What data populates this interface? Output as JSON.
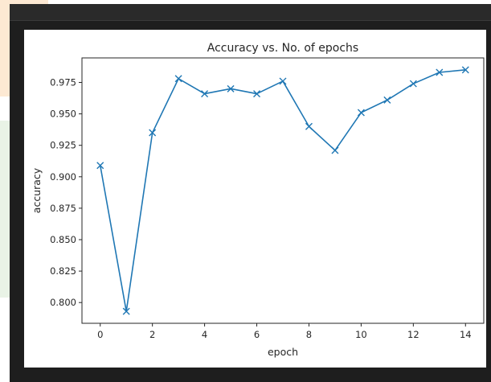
{
  "chart_data": {
    "type": "line",
    "title": "Accuracy vs. No. of epochs",
    "xlabel": "epoch",
    "ylabel": "accuracy",
    "x": [
      0,
      1,
      2,
      3,
      4,
      5,
      6,
      7,
      8,
      9,
      10,
      11,
      12,
      13,
      14
    ],
    "series": [
      {
        "values": [
          0.909,
          0.793,
          0.935,
          0.978,
          0.966,
          0.97,
          0.966,
          0.976,
          0.94,
          0.921,
          0.951,
          0.961,
          0.974,
          0.983,
          0.985
        ],
        "color": "#1f77b4",
        "marker": "x"
      }
    ],
    "xlim": [
      -0.7,
      14.7
    ],
    "ylim": [
      0.7835,
      0.9945
    ],
    "xticks": [
      0,
      2,
      4,
      6,
      8,
      10,
      12,
      14
    ],
    "xtick_labels": [
      "0",
      "2",
      "4",
      "6",
      "8",
      "10",
      "12",
      "14"
    ],
    "yticks": [
      0.8,
      0.825,
      0.85,
      0.875,
      0.9,
      0.925,
      0.95,
      0.975
    ],
    "ytick_labels": [
      "0.800",
      "0.825",
      "0.850",
      "0.875",
      "0.900",
      "0.925",
      "0.950",
      "0.975"
    ],
    "grid": false,
    "legend": "none"
  }
}
